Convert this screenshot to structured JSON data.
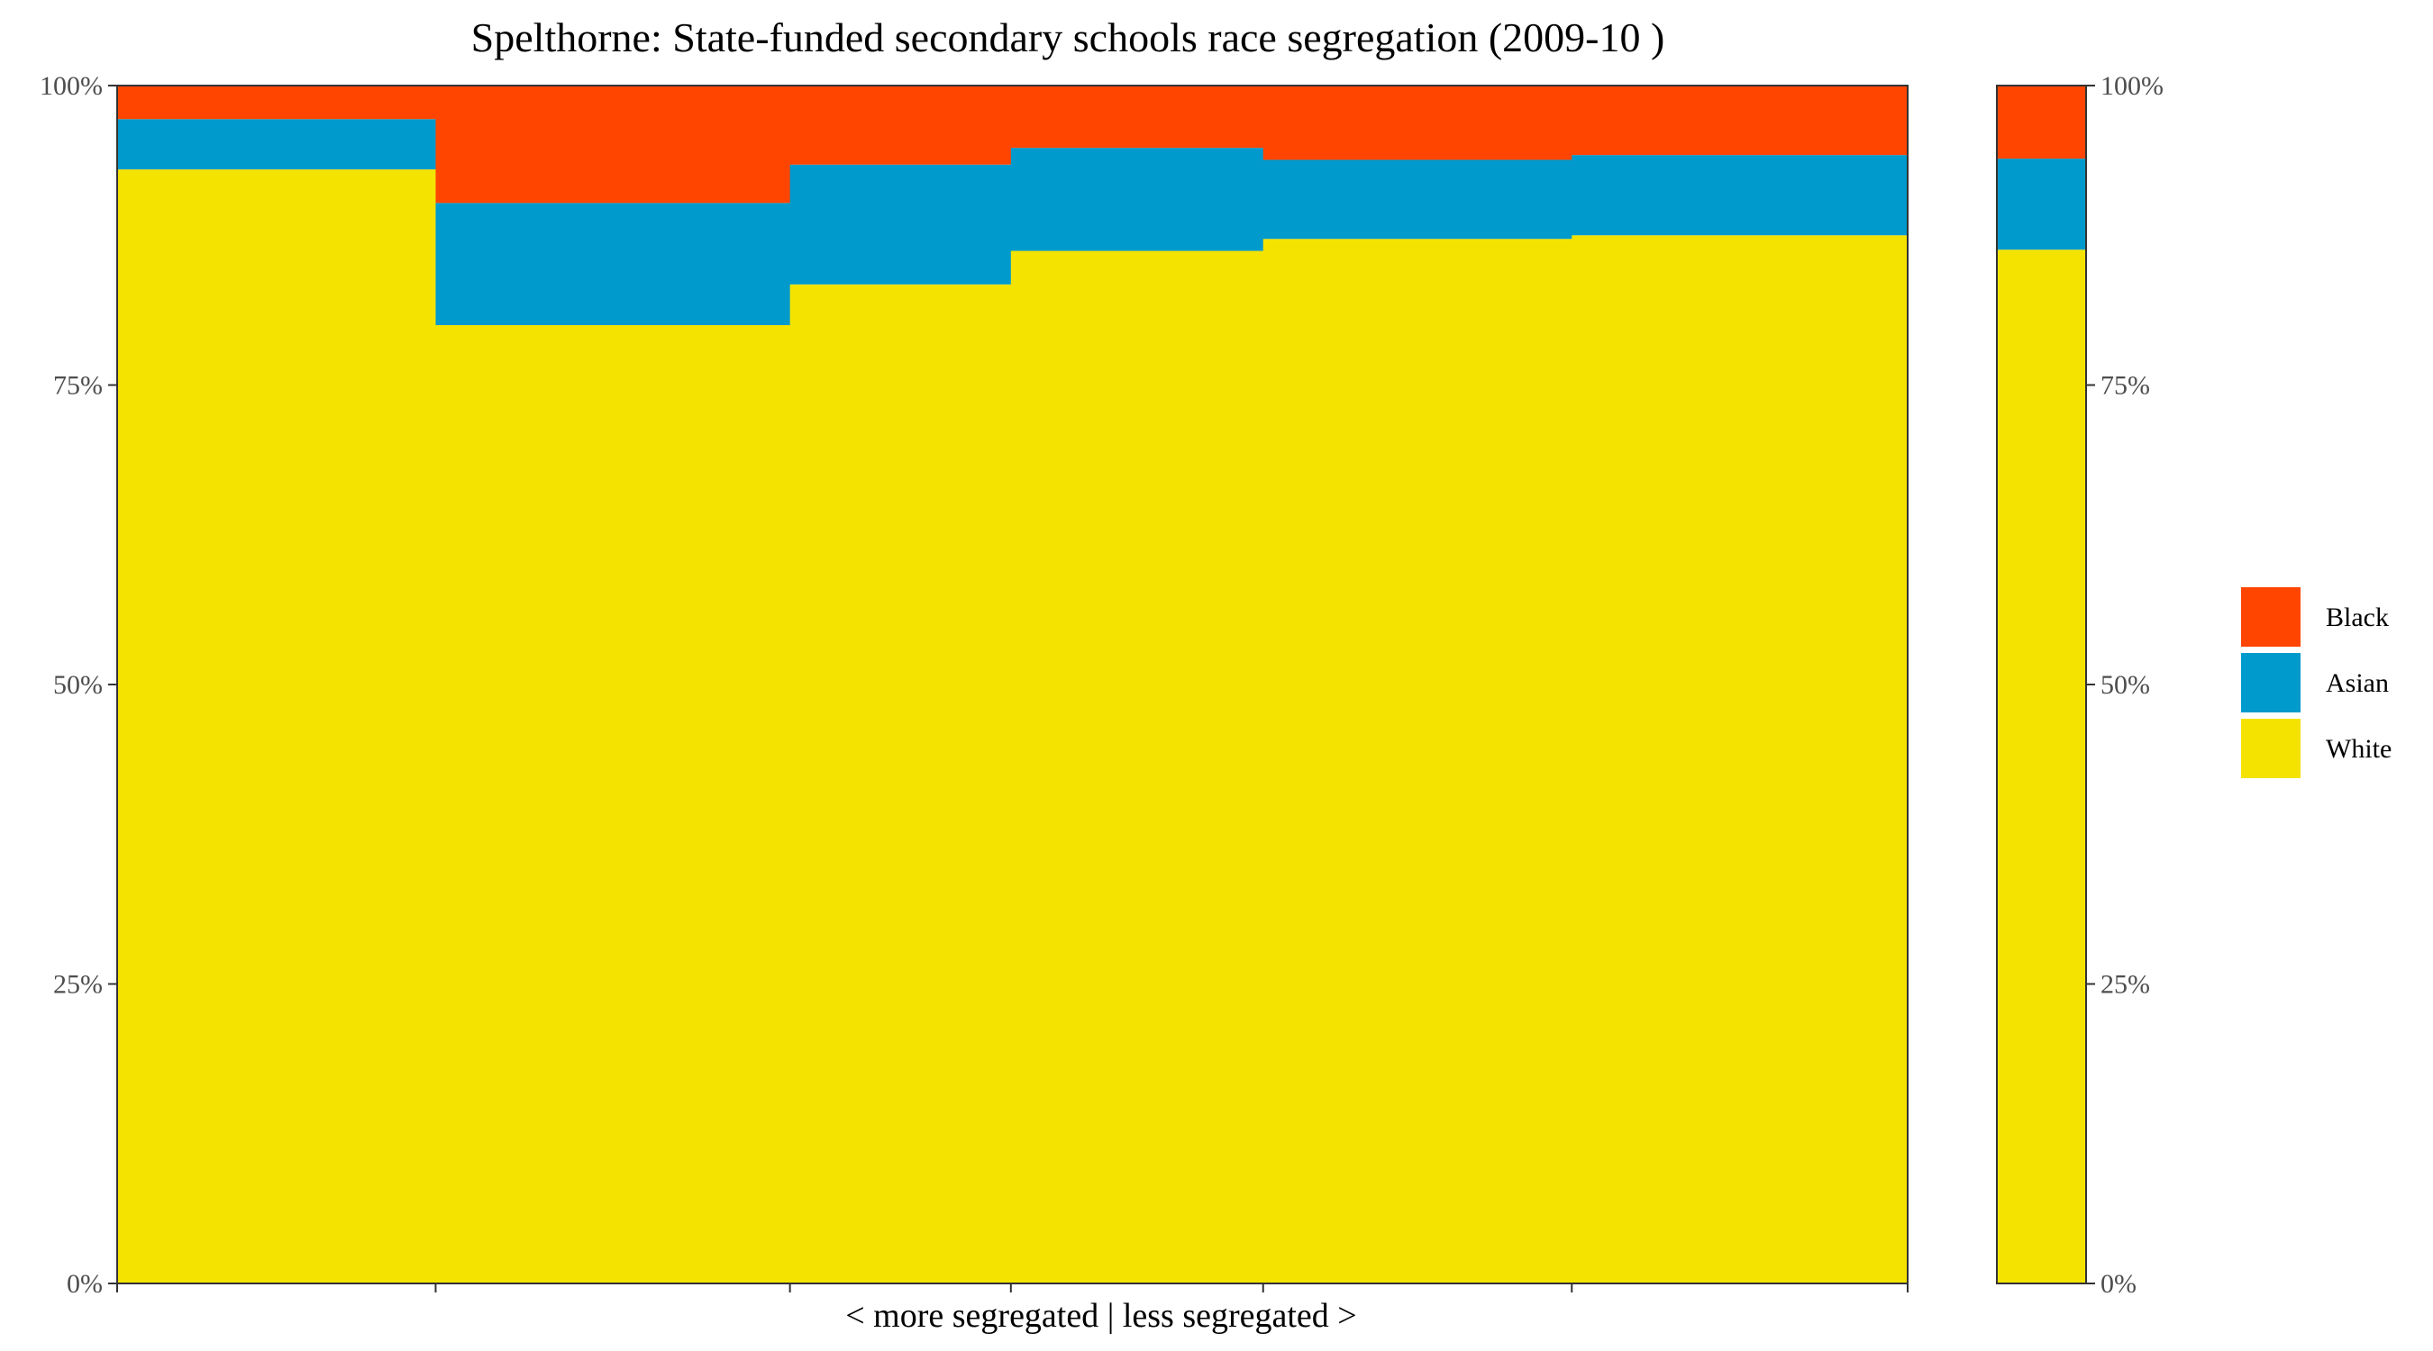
{
  "chart_data": {
    "type": "bar",
    "title": "Spelthorne: State-funded secondary schools race segregation (2009-10 )",
    "xlabel": "< more segregated | less segregated >",
    "ylabel": "",
    "ylim": [
      0,
      100
    ],
    "y_tick_labels": [
      "0%",
      "25%",
      "50%",
      "75%",
      "100%"
    ],
    "grid": false,
    "legend_position": "right",
    "layout_note_variable_width": true,
    "series": [
      {
        "name": "White",
        "color": "#F4E300"
      },
      {
        "name": "Asian",
        "color": "#009ACD"
      },
      {
        "name": "Black",
        "color": "#FF4500"
      }
    ],
    "legend_order": [
      "Black",
      "Asian",
      "White"
    ],
    "schools": [
      {
        "share": 0.1779,
        "white": 93.0,
        "asian": 4.2,
        "black": 2.8
      },
      {
        "share": 0.1979,
        "white": 80.0,
        "asian": 10.2,
        "black": 9.8
      },
      {
        "share": 0.1234,
        "white": 83.4,
        "asian": 10.0,
        "black": 6.6
      },
      {
        "share": 0.1409,
        "white": 86.2,
        "asian": 8.6,
        "black": 5.2
      },
      {
        "share": 0.1724,
        "white": 87.2,
        "asian": 6.6,
        "black": 6.2
      },
      {
        "share": 0.1876,
        "white": 87.5,
        "asian": 6.7,
        "black": 5.8
      }
    ],
    "total": {
      "white": 86.3,
      "asian": 7.6,
      "black": 6.1
    }
  }
}
